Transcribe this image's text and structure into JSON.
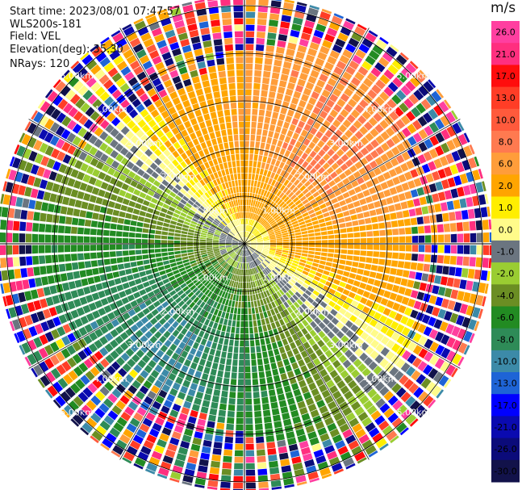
{
  "header": {
    "start_time": "Start time: 2023/08/01 07:47:57",
    "instrument": "WLS200s-181",
    "field": "Field: VEL",
    "elevation": "Elevation(deg): 35.30",
    "nrays": "NRays: 120"
  },
  "chart_data": {
    "type": "heatmap",
    "projection": "polar-ppi",
    "field": "VEL",
    "units": "m/s",
    "range_rings_km": [
      1,
      2,
      3,
      4,
      5
    ],
    "ring_labels": [
      "1.00km",
      "2.00km",
      "3.00km",
      "4.00km",
      "5.00km"
    ],
    "max_range_km": 5.2,
    "n_rays": 120,
    "dominant_pattern": {
      "note": "Receding (positive) flow toward north-east, approaching (negative) flow toward south-west; noisy beyond about 4 km",
      "peak_positive_ms": 8,
      "peak_negative_ms": -8
    },
    "colorbar": {
      "title": "m/s",
      "tick_labels": [
        "26.0",
        "21.0",
        "17.0",
        "13.0",
        "10.0",
        "8.0",
        "6.0",
        "2.0",
        "1.0",
        "0.0",
        "-1.0",
        "-2.0",
        "-4.0",
        "-6.0",
        "-8.0",
        "-10.0",
        "-13.0",
        "-17.0",
        "-21.0",
        "-26.0",
        "-30.0"
      ],
      "bins": [
        {
          "lo": 26,
          "hi": 30,
          "color": "#ff3fa0"
        },
        {
          "lo": 21,
          "hi": 26,
          "color": "#ff2f7f"
        },
        {
          "lo": 17,
          "hi": 21,
          "color": "#ff0d0d"
        },
        {
          "lo": 13,
          "hi": 17,
          "color": "#ff3d26"
        },
        {
          "lo": 10,
          "hi": 13,
          "color": "#ff5a3c"
        },
        {
          "lo": 8,
          "hi": 10,
          "color": "#ff7a50"
        },
        {
          "lo": 6,
          "hi": 8,
          "color": "#ff9d3a"
        },
        {
          "lo": 2,
          "hi": 6,
          "color": "#ffa500"
        },
        {
          "lo": 1,
          "hi": 2,
          "color": "#ffee00"
        },
        {
          "lo": 0,
          "hi": 1,
          "color": "#fffb8a"
        },
        {
          "lo": -1,
          "hi": 0,
          "color": "#6b7580"
        },
        {
          "lo": -2,
          "hi": -1,
          "color": "#9acd32"
        },
        {
          "lo": -4,
          "hi": -2,
          "color": "#6b8e23"
        },
        {
          "lo": -6,
          "hi": -4,
          "color": "#228b22"
        },
        {
          "lo": -8,
          "hi": -6,
          "color": "#2e8b57"
        },
        {
          "lo": -10,
          "hi": -8,
          "color": "#3c8aa8"
        },
        {
          "lo": -13,
          "hi": -10,
          "color": "#1e64d6"
        },
        {
          "lo": -17,
          "hi": -13,
          "color": "#0000ff"
        },
        {
          "lo": -21,
          "hi": -17,
          "color": "#0a0ab0"
        },
        {
          "lo": -26,
          "hi": -21,
          "color": "#0b0b7a"
        },
        {
          "lo": -30,
          "hi": -26,
          "color": "#12124a"
        }
      ]
    }
  }
}
